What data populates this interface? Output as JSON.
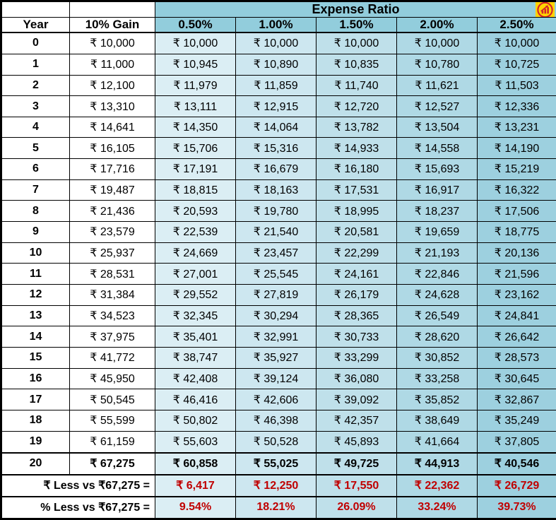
{
  "theme": {
    "band_color": "#92CDDC",
    "ratio_col_colors": [
      "#DBEEF4",
      "#CDE7F0",
      "#BFE0EA",
      "#AFD9E5",
      "#9DD0DF"
    ],
    "negative_value_color": "#C00000",
    "border_color": "#000000",
    "logo_colors": {
      "square": "#FFD400",
      "glyph": "#D2232A"
    }
  },
  "chart_data": {
    "type": "table",
    "band_label": "Expense Ratio",
    "year_label": "Year",
    "gain_label": "10% Gain",
    "ratio_columns": [
      "0.50%",
      "1.00%",
      "1.50%",
      "2.00%",
      "2.50%"
    ],
    "logo_icon": "hand-growth-logo",
    "rows": [
      {
        "year": "0",
        "gain": "₹ 10,000",
        "values": [
          "₹ 10,000",
          "₹ 10,000",
          "₹ 10,000",
          "₹ 10,000",
          "₹ 10,000"
        ]
      },
      {
        "year": "1",
        "gain": "₹ 11,000",
        "values": [
          "₹ 10,945",
          "₹ 10,890",
          "₹ 10,835",
          "₹ 10,780",
          "₹ 10,725"
        ]
      },
      {
        "year": "2",
        "gain": "₹ 12,100",
        "values": [
          "₹ 11,979",
          "₹ 11,859",
          "₹ 11,740",
          "₹ 11,621",
          "₹ 11,503"
        ]
      },
      {
        "year": "3",
        "gain": "₹ 13,310",
        "values": [
          "₹ 13,111",
          "₹ 12,915",
          "₹ 12,720",
          "₹ 12,527",
          "₹ 12,336"
        ]
      },
      {
        "year": "4",
        "gain": "₹ 14,641",
        "values": [
          "₹ 14,350",
          "₹ 14,064",
          "₹ 13,782",
          "₹ 13,504",
          "₹ 13,231"
        ]
      },
      {
        "year": "5",
        "gain": "₹ 16,105",
        "values": [
          "₹ 15,706",
          "₹ 15,316",
          "₹ 14,933",
          "₹ 14,558",
          "₹ 14,190"
        ]
      },
      {
        "year": "6",
        "gain": "₹ 17,716",
        "values": [
          "₹ 17,191",
          "₹ 16,679",
          "₹ 16,180",
          "₹ 15,693",
          "₹ 15,219"
        ]
      },
      {
        "year": "7",
        "gain": "₹ 19,487",
        "values": [
          "₹ 18,815",
          "₹ 18,163",
          "₹ 17,531",
          "₹ 16,917",
          "₹ 16,322"
        ]
      },
      {
        "year": "8",
        "gain": "₹ 21,436",
        "values": [
          "₹ 20,593",
          "₹ 19,780",
          "₹ 18,995",
          "₹ 18,237",
          "₹ 17,506"
        ]
      },
      {
        "year": "9",
        "gain": "₹ 23,579",
        "values": [
          "₹ 22,539",
          "₹ 21,540",
          "₹ 20,581",
          "₹ 19,659",
          "₹ 18,775"
        ]
      },
      {
        "year": "10",
        "gain": "₹ 25,937",
        "values": [
          "₹ 24,669",
          "₹ 23,457",
          "₹ 22,299",
          "₹ 21,193",
          "₹ 20,136"
        ]
      },
      {
        "year": "11",
        "gain": "₹ 28,531",
        "values": [
          "₹ 27,001",
          "₹ 25,545",
          "₹ 24,161",
          "₹ 22,846",
          "₹ 21,596"
        ]
      },
      {
        "year": "12",
        "gain": "₹ 31,384",
        "values": [
          "₹ 29,552",
          "₹ 27,819",
          "₹ 26,179",
          "₹ 24,628",
          "₹ 23,162"
        ]
      },
      {
        "year": "13",
        "gain": "₹ 34,523",
        "values": [
          "₹ 32,345",
          "₹ 30,294",
          "₹ 28,365",
          "₹ 26,549",
          "₹ 24,841"
        ]
      },
      {
        "year": "14",
        "gain": "₹ 37,975",
        "values": [
          "₹ 35,401",
          "₹ 32,991",
          "₹ 30,733",
          "₹ 28,620",
          "₹ 26,642"
        ]
      },
      {
        "year": "15",
        "gain": "₹ 41,772",
        "values": [
          "₹ 38,747",
          "₹ 35,927",
          "₹ 33,299",
          "₹ 30,852",
          "₹ 28,573"
        ]
      },
      {
        "year": "16",
        "gain": "₹ 45,950",
        "values": [
          "₹ 42,408",
          "₹ 39,124",
          "₹ 36,080",
          "₹ 33,258",
          "₹ 30,645"
        ]
      },
      {
        "year": "17",
        "gain": "₹ 50,545",
        "values": [
          "₹ 46,416",
          "₹ 42,606",
          "₹ 39,092",
          "₹ 35,852",
          "₹ 32,867"
        ]
      },
      {
        "year": "18",
        "gain": "₹ 55,599",
        "values": [
          "₹ 50,802",
          "₹ 46,398",
          "₹ 42,357",
          "₹ 38,649",
          "₹ 35,249"
        ]
      },
      {
        "year": "19",
        "gain": "₹ 61,159",
        "values": [
          "₹ 55,603",
          "₹ 50,528",
          "₹ 45,893",
          "₹ 41,664",
          "₹ 37,805"
        ]
      },
      {
        "year": "20",
        "gain": "₹ 67,275",
        "total": true,
        "values": [
          "₹ 60,858",
          "₹ 55,025",
          "₹ 49,725",
          "₹ 44,913",
          "₹ 40,546"
        ]
      }
    ],
    "summary_rows": [
      {
        "label": "₹ Less vs ₹67,275 =",
        "values": [
          "₹ 6,417",
          "₹ 12,250",
          "₹ 17,550",
          "₹ 22,362",
          "₹ 26,729"
        ]
      },
      {
        "label": "% Less vs ₹67,275 =",
        "values": [
          "9.54%",
          "18.21%",
          "26.09%",
          "33.24%",
          "39.73%"
        ]
      }
    ]
  }
}
